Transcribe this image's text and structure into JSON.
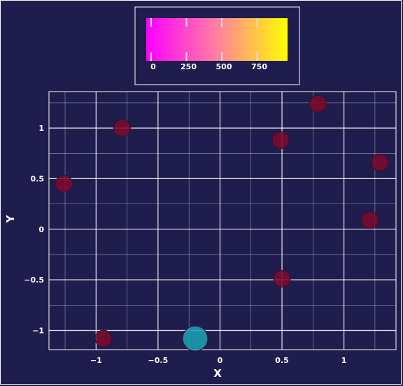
{
  "chart_data": {
    "type": "scatter",
    "xlabel": "X",
    "ylabel": "Y",
    "xlim": [
      -1.38,
      1.42
    ],
    "ylim": [
      -1.19,
      1.36
    ],
    "x_ticks": [
      "−1",
      "−0.5",
      "0",
      "0.5",
      "1"
    ],
    "x_tick_values": [
      -1,
      -0.5,
      0,
      0.5,
      1
    ],
    "y_ticks": [
      "−1",
      "−0.5",
      "0",
      "0.5",
      "1"
    ],
    "y_tick_values": [
      -1,
      -0.5,
      0,
      0.5,
      1
    ],
    "grid": true,
    "background_color": "#1e1d4d",
    "colorbar": {
      "ticks": [
        "0",
        "250",
        "500",
        "750"
      ],
      "tick_values": [
        0,
        250,
        500,
        750
      ],
      "range": [
        0,
        1000
      ],
      "colormap": [
        "#ff00ff",
        "#ff80a0",
        "#ffff00"
      ],
      "placement": "top-center"
    },
    "points": [
      {
        "x": -1.26,
        "y": 0.45,
        "size": 1,
        "color": "#7c0a2c"
      },
      {
        "x": -0.79,
        "y": 1.0,
        "size": 1,
        "color": "#7c0a2c"
      },
      {
        "x": -0.94,
        "y": -1.08,
        "size": 1,
        "color": "#7c0a2c"
      },
      {
        "x": 0.49,
        "y": 0.88,
        "size": 1,
        "color": "#7c0a2c"
      },
      {
        "x": 0.79,
        "y": 1.24,
        "size": 1,
        "color": "#7c0a2c"
      },
      {
        "x": 1.29,
        "y": 0.66,
        "size": 1,
        "color": "#7c0a2c"
      },
      {
        "x": 1.21,
        "y": 0.09,
        "size": 1,
        "color": "#7c0a2c"
      },
      {
        "x": 0.5,
        "y": -0.49,
        "size": 1,
        "color": "#7c0a2c"
      },
      {
        "x": -0.2,
        "y": -1.08,
        "size": 2,
        "color": "#1aa0b4"
      }
    ]
  }
}
